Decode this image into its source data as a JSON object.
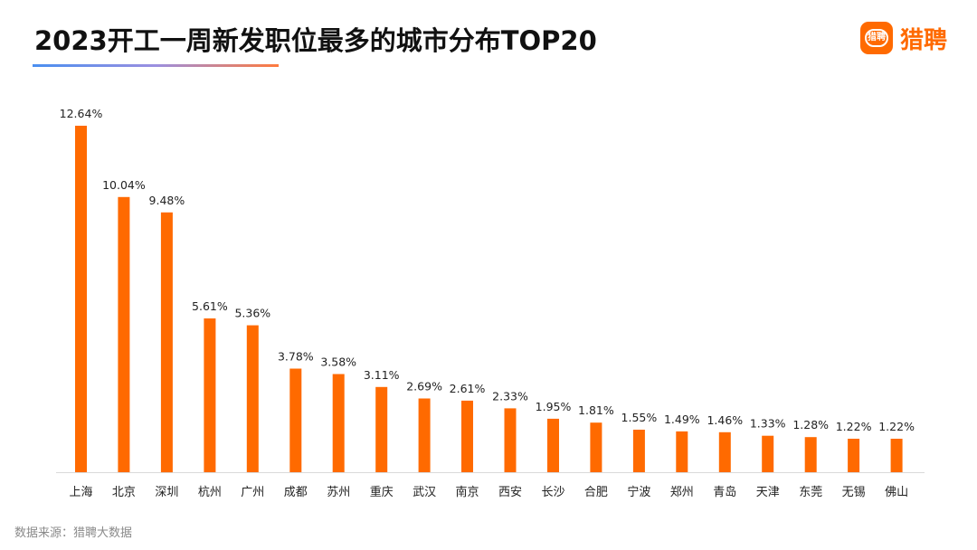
{
  "header": {
    "title": "2023开工一周新发职位最多的城市分布TOP20"
  },
  "brand": {
    "logo_mark_text": "猎聘",
    "logo_text": "猎聘",
    "color": "#ff6a00"
  },
  "footer": {
    "source": "数据来源：猎聘大数据"
  },
  "chart_data": {
    "type": "bar",
    "title": "2023开工一周新发职位最多的城市分布TOP20",
    "xlabel": "",
    "ylabel": "",
    "ylim": [
      0,
      14
    ],
    "unit": "%",
    "bar_color": "#ff6a00",
    "categories": [
      "上海",
      "北京",
      "深圳",
      "杭州",
      "广州",
      "成都",
      "苏州",
      "重庆",
      "武汉",
      "南京",
      "西安",
      "长沙",
      "合肥",
      "宁波",
      "郑州",
      "青岛",
      "天津",
      "东莞",
      "无锡",
      "佛山"
    ],
    "values": [
      12.64,
      10.04,
      9.48,
      5.61,
      5.36,
      3.78,
      3.58,
      3.11,
      2.69,
      2.61,
      2.33,
      1.95,
      1.81,
      1.55,
      1.49,
      1.46,
      1.33,
      1.28,
      1.22,
      1.22
    ],
    "value_labels": [
      "12.64%",
      "10.04%",
      "9.48%",
      "5.61%",
      "5.36%",
      "3.78%",
      "3.58%",
      "3.11%",
      "2.69%",
      "2.61%",
      "2.33%",
      "1.95%",
      "1.81%",
      "1.55%",
      "1.49%",
      "1.46%",
      "1.33%",
      "1.28%",
      "1.22%",
      "1.22%"
    ]
  }
}
